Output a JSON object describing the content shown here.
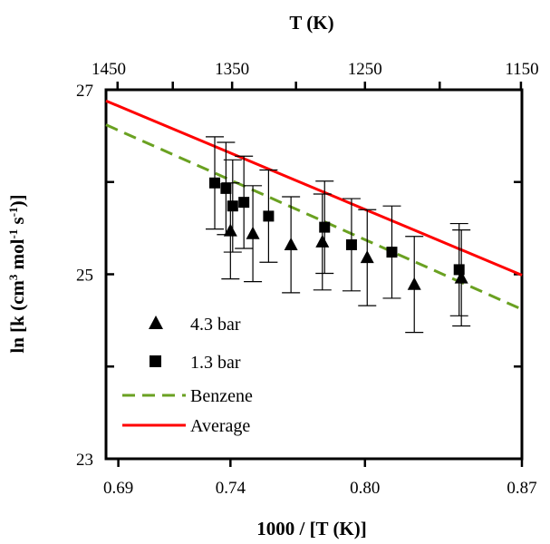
{
  "chart_data": {
    "type": "scatter",
    "xlabel": "1000 / [T (K)]",
    "ylabel_main": "ln [k (cm",
    "ylabel_sup1": "3",
    "ylabel_mid1": " mol",
    "ylabel_sup2": "-1",
    "ylabel_mid2": " s",
    "ylabel_sup3": "-1",
    "ylabel_end": ")]",
    "top_xlabel": "T (K)",
    "xlim": [
      0.6845,
      0.87
    ],
    "ylim": [
      23,
      27
    ],
    "x_ticks": [
      0.69,
      0.74,
      0.8,
      0.87
    ],
    "x_tick_labels": [
      "0.69",
      "0.74",
      "0.80",
      "0.87"
    ],
    "y_ticks": [
      23,
      25,
      27
    ],
    "y_tick_labels": [
      "23",
      "25",
      "27"
    ],
    "top_ticks": [
      1450,
      1350,
      1250,
      1150
    ],
    "top_tick_labels": [
      "1450",
      "1350",
      "1250",
      "1150"
    ],
    "series": [
      {
        "name": "4.3 bar",
        "marker": "triangle",
        "color": "#000000",
        "points": [
          {
            "x": 0.74,
            "y": 25.47,
            "err": 0.52
          },
          {
            "x": 0.75,
            "y": 25.44,
            "err": 0.52
          },
          {
            "x": 0.767,
            "y": 25.32,
            "err": 0.52
          },
          {
            "x": 0.781,
            "y": 25.35,
            "err": 0.52
          },
          {
            "x": 0.801,
            "y": 25.18,
            "err": 0.52
          },
          {
            "x": 0.822,
            "y": 24.89,
            "err": 0.52
          },
          {
            "x": 0.843,
            "y": 24.96,
            "err": 0.52
          }
        ]
      },
      {
        "name": "1.3 bar",
        "marker": "square",
        "color": "#000000",
        "points": [
          {
            "x": 0.733,
            "y": 25.99,
            "err": 0.5
          },
          {
            "x": 0.738,
            "y": 25.93,
            "err": 0.5
          },
          {
            "x": 0.741,
            "y": 25.74,
            "err": 0.5
          },
          {
            "x": 0.746,
            "y": 25.78,
            "err": 0.5
          },
          {
            "x": 0.757,
            "y": 25.63,
            "err": 0.5
          },
          {
            "x": 0.782,
            "y": 25.51,
            "err": 0.5
          },
          {
            "x": 0.794,
            "y": 25.32,
            "err": 0.5
          },
          {
            "x": 0.812,
            "y": 25.24,
            "err": 0.5
          },
          {
            "x": 0.842,
            "y": 25.05,
            "err": 0.5
          }
        ]
      },
      {
        "name": "Benzene",
        "type": "line",
        "dash": true,
        "color": "#6aa121",
        "x": [
          0.6845,
          0.87
        ],
        "y": [
          26.62,
          24.62
        ]
      },
      {
        "name": "Average",
        "type": "line",
        "dash": false,
        "color": "#ff0000",
        "x": [
          0.6845,
          0.87
        ],
        "y": [
          26.88,
          24.99
        ]
      }
    ],
    "legend": [
      "4.3 bar",
      "1.3 bar",
      "Benzene",
      "Average"
    ],
    "legend_position": "bottom-left",
    "grid": false
  }
}
